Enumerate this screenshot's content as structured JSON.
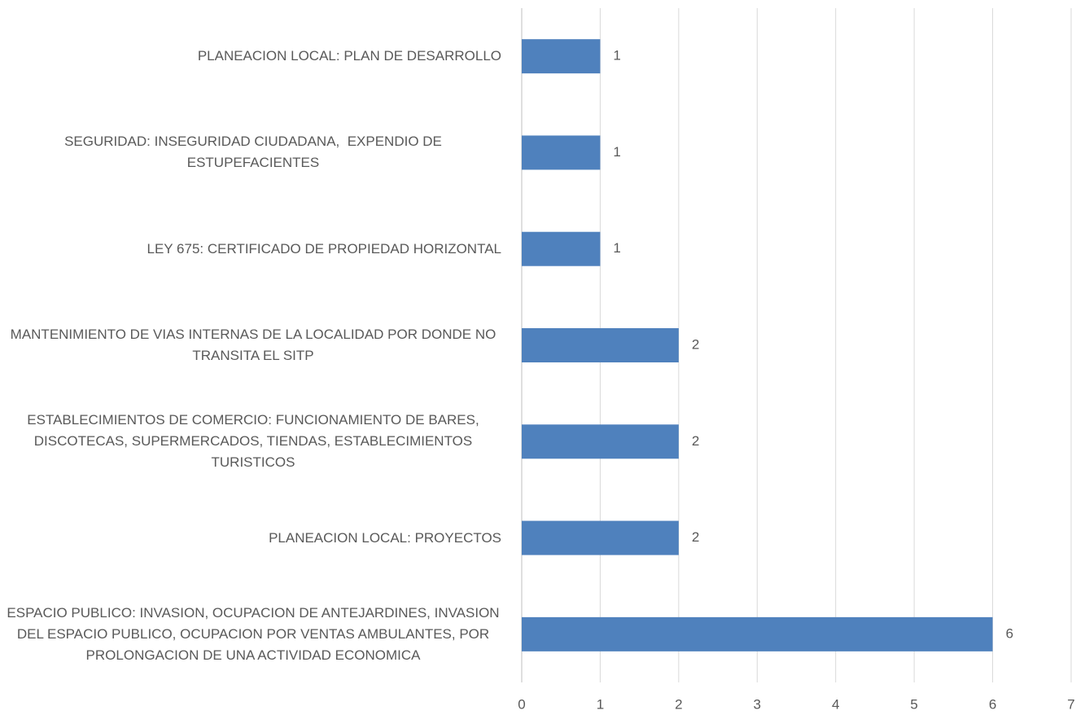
{
  "chart_data": {
    "type": "barh",
    "categories": [
      "PLANEACION LOCAL: PLAN DE DESARROLLO",
      "SEGURIDAD: INSEGURIDAD CIUDADANA,  EXPENDIO DE ESTUPEFACIENTES",
      "LEY 675: CERTIFICADO DE PROPIEDAD HORIZONTAL",
      "MANTENIMIENTO DE VIAS INTERNAS DE LA LOCALIDAD POR DONDE NO TRANSITA EL SITP",
      "ESTABLECIMIENTOS DE COMERCIO: FUNCIONAMIENTO DE BARES, DISCOTECAS, SUPERMERCADOS, TIENDAS, ESTABLECIMIENTOS TURISTICOS",
      "PLANEACION LOCAL: PROYECTOS",
      "ESPACIO PUBLICO: INVASION, OCUPACION DE ANTEJARDINES, INVASION DEL ESPACIO PUBLICO, OCUPACION POR VENTAS AMBULANTES, POR PROLONGACION DE UNA ACTIVIDAD ECONOMICA"
    ],
    "values": [
      1,
      1,
      1,
      2,
      2,
      2,
      6
    ],
    "color": "#4f81bd",
    "xlim": [
      0,
      7
    ],
    "xticks": [
      0,
      1,
      2,
      3,
      4,
      5,
      6,
      7
    ],
    "grid": true
  }
}
